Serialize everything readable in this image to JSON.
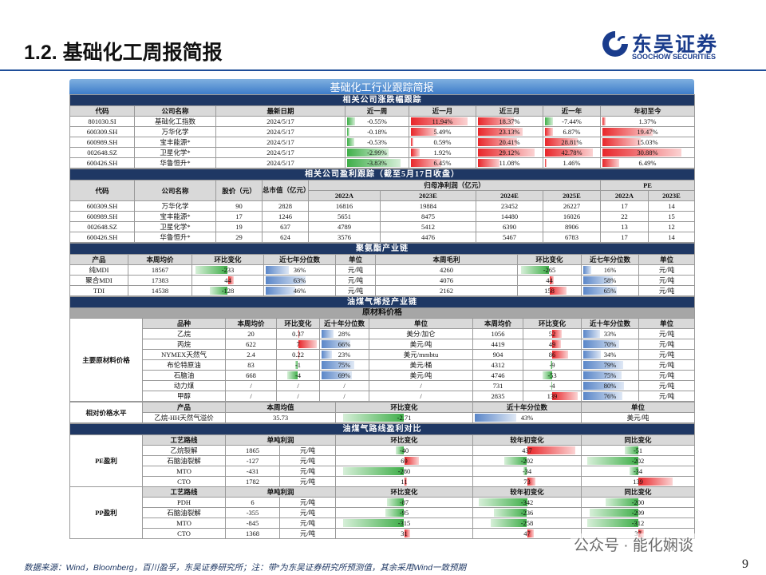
{
  "header": {
    "title": "1.2. 基础化工周报简报",
    "logo_cn": "东吴证券",
    "logo_en": "SOOCHOW SECURITIES"
  },
  "banner": "基础化工行业跟踪简报",
  "price_tracking": {
    "title": "相关公司涨跌幅跟踪",
    "columns": [
      "代码",
      "公司名称",
      "最新日期",
      "近一周",
      "近一月",
      "近三月",
      "近一年",
      "年初至今"
    ],
    "rows": [
      [
        "801030.SI",
        "基础化工指数",
        "2024/5/17",
        "-0.55%",
        "11.94%",
        "18.37%",
        "-7.44%",
        "1.37%"
      ],
      [
        "600309.SH",
        "万华化学",
        "2024/5/17",
        "-0.18%",
        "5.49%",
        "23.13%",
        "6.87%",
        "19.47%"
      ],
      [
        "600989.SH",
        "宝丰能源*",
        "2024/5/17",
        "-0.53%",
        "0.59%",
        "20.41%",
        "28.81%",
        "15.03%"
      ],
      [
        "002648.SZ",
        "卫星化学*",
        "2024/5/17",
        "-2.99%",
        "1.92%",
        "29.12%",
        "42.78%",
        "30.88%"
      ],
      [
        "600426.SH",
        "华鲁恒升*",
        "2024/5/17",
        "-3.83%",
        "6.45%",
        "11.08%",
        "1.46%",
        "6.49%"
      ]
    ]
  },
  "earnings": {
    "title": "相关公司盈利跟踪（截至5月17日收盘）",
    "columns": [
      "代码",
      "公司名称",
      "股价（元）",
      "总市值（亿元）",
      "归母净利润（亿元）",
      "PE"
    ],
    "profit_years": [
      "2022A",
      "2023E",
      "2024E",
      "2025E"
    ],
    "pe_years": [
      "2022A",
      "2023E"
    ],
    "rows": [
      [
        "600309.SH",
        "万华化学",
        "90",
        "2828",
        "16816",
        "19884",
        "23452",
        "26227",
        "17",
        "14"
      ],
      [
        "600989.SH",
        "宝丰能源*",
        "17",
        "1246",
        "5651",
        "8475",
        "14480",
        "16026",
        "22",
        "15"
      ],
      [
        "002648.SZ",
        "卫星化学*",
        "19",
        "637",
        "4789",
        "5412",
        "6390",
        "8906",
        "13",
        "12"
      ],
      [
        "600426.SH",
        "华鲁恒升*",
        "29",
        "624",
        "3576",
        "4476",
        "5467",
        "6783",
        "17",
        "14"
      ]
    ]
  },
  "polyurethane": {
    "title": "聚氨酯产业链",
    "columns": [
      "产品",
      "本周均价",
      "环比变化",
      "近七年分位数",
      "单位",
      "本周毛利",
      "环比变化",
      "近七年分位数",
      "单位"
    ],
    "rows": [
      [
        "纯MDI",
        "18567",
        "-233",
        "36%",
        "元/吨",
        "4260",
        "-265",
        "16%",
        "元/吨"
      ],
      [
        "聚合MDI",
        "17383",
        "44",
        "63%",
        "元/吨",
        "4076",
        "44",
        "58%",
        "元/吨"
      ],
      [
        "TDI",
        "14538",
        "-128",
        "46%",
        "元/吨",
        "2162",
        "158",
        "65%",
        "元/吨"
      ]
    ]
  },
  "olefin": {
    "title": "油煤气烯烃产业链",
    "subtitle": "原材料价格",
    "side_label": "主要原材料价格",
    "columns": [
      "品种",
      "本周均价",
      "环比变化",
      "近十年分位数",
      "单位",
      "本周均价",
      "环比变化",
      "近十年分位数",
      "单位"
    ],
    "rows": [
      [
        "乙烷",
        "20",
        "0.37",
        "28%",
        "美分/加仑",
        "1056",
        "52",
        "33%",
        "元/吨"
      ],
      [
        "丙烷",
        "622",
        "7",
        "66%",
        "美元/吨",
        "4419",
        "49",
        "70%",
        "元/吨"
      ],
      [
        "NYMEX天然气",
        "2.4",
        "0.22",
        "23%",
        "美元/mmbtu",
        "904",
        "86",
        "34%",
        "元/吨"
      ],
      [
        "布伦特原油",
        "83",
        "-1",
        "75%",
        "美元/桶",
        "4312",
        "-9",
        "79%",
        "元/吨"
      ],
      [
        "石脑油",
        "668",
        "-4",
        "69%",
        "美元/吨",
        "4746",
        "-53",
        "75%",
        "元/吨"
      ],
      [
        "动力煤",
        "/",
        "/",
        "/",
        "/",
        "731",
        "-4",
        "80%",
        "元/吨"
      ],
      [
        "甲醇",
        "/",
        "/",
        "/",
        "/",
        "2835",
        "139",
        "76%",
        "元/吨"
      ]
    ],
    "relative": {
      "side_label": "相对价格水平",
      "columns": [
        "产品",
        "本周均值",
        "环比变化",
        "近十年分位数",
        "单位"
      ],
      "rows": [
        [
          "乙烷-HH天然气溢价",
          "35.73",
          "-2.71",
          "43%",
          "美元/吨"
        ]
      ]
    }
  },
  "profit": {
    "title": "油煤气路线盈利对比",
    "groups": [
      {
        "label": "PE盈利",
        "columns": [
          "工艺路线",
          "单吨利润",
          "环比变化",
          "较年初变化",
          "同比变化"
        ],
        "rows": [
          [
            "乙烷裂解",
            "1865",
            "元/吨",
            "-40",
            "437",
            "-51"
          ],
          [
            "石脑油裂解",
            "-127",
            "元/吨",
            "69",
            "-202",
            "-202"
          ],
          [
            "MTO",
            "-431",
            "元/吨",
            "-280",
            "-34",
            "-34"
          ],
          [
            "CTO",
            "1782",
            "元/吨",
            "11",
            "73",
            "139"
          ]
        ]
      },
      {
        "label": "PP盈利",
        "columns": [
          "工艺路线",
          "单吨利润",
          "环比变化",
          "较年初变化",
          "同比变化"
        ],
        "rows": [
          [
            "PDH",
            "6",
            "元/吨",
            "-87",
            "-342",
            "-200"
          ],
          [
            "石脑油裂解",
            "-355",
            "元/吨",
            "-95",
            "-236",
            "-299"
          ],
          [
            "MTO",
            "-845",
            "元/吨",
            "-315",
            "-258",
            "-312"
          ],
          [
            "CTO",
            "1368",
            "元/吨",
            "31",
            "47",
            "37"
          ]
        ]
      }
    ]
  },
  "footer": {
    "source": "数据来源：Wind，Bloomberg，百川盈孚，东吴证券研究所；注：带*为东吴证券研究所预测值，其余采用Wind一致预期",
    "page": "9",
    "watermark": "公众号 · 能化娴谈"
  }
}
